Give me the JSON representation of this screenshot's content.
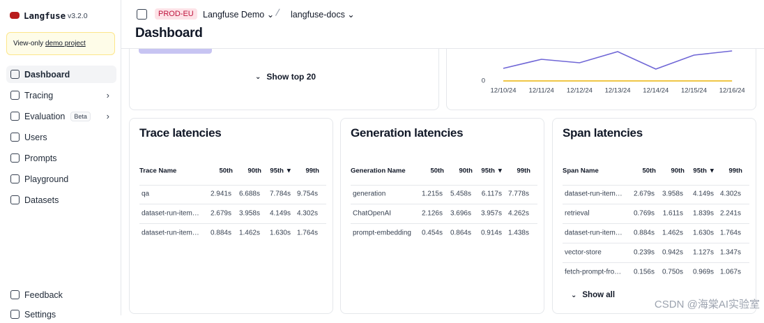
{
  "sidebar": {
    "logo": "Langfuse",
    "version": "v3.2.0",
    "notice": {
      "text": "View-only",
      "link": "demo project"
    },
    "nav": [
      "Dashboard",
      "Tracing",
      "Evaluation",
      "Users",
      "Prompts",
      "Playground",
      "Datasets"
    ],
    "beta": "Beta",
    "footer": [
      "Feedback",
      "Settings"
    ]
  },
  "header": {
    "env": "PROD-EU",
    "org": "Langfuse Demo",
    "project": "langfuse-docs",
    "title": "Dashboard"
  },
  "top_card": {
    "button": "Show top 20"
  },
  "chart": {
    "type": "line",
    "x": [
      "12/10/24",
      "12/11/24",
      "12/12/24",
      "12/13/24",
      "12/14/24",
      "12/15/24",
      "12/16/24"
    ],
    "ylim": [
      0,
      50
    ],
    "yticks": [
      0
    ],
    "series": [
      {
        "color": "#6f66d6",
        "values": [
          18,
          31,
          26,
          42,
          17,
          37,
          43
        ]
      },
      {
        "color": "#eab308",
        "values": [
          0,
          0,
          0,
          0,
          0,
          0,
          0
        ]
      }
    ]
  },
  "latency_tables": [
    {
      "title": "Trace latencies",
      "columns": [
        "Trace Name",
        "50th",
        "90th",
        "95th ▼",
        "99th"
      ],
      "rows": [
        [
          "qa",
          "2.941s",
          "6.688s",
          "7.784s",
          "9.754s"
        ],
        [
          "dataset-run-item…",
          "2.679s",
          "3.958s",
          "4.149s",
          "4.302s"
        ],
        [
          "dataset-run-item…",
          "0.884s",
          "1.462s",
          "1.630s",
          "1.764s"
        ]
      ]
    },
    {
      "title": "Generation latencies",
      "columns": [
        "Generation Name",
        "50th",
        "90th",
        "95th ▼",
        "99th"
      ],
      "rows": [
        [
          "generation",
          "1.215s",
          "5.458s",
          "6.117s",
          "7.778s"
        ],
        [
          "ChatOpenAI",
          "2.126s",
          "3.696s",
          "3.957s",
          "4.262s"
        ],
        [
          "prompt-embedding",
          "0.454s",
          "0.864s",
          "0.914s",
          "1.438s"
        ]
      ]
    },
    {
      "title": "Span latencies",
      "columns": [
        "Span Name",
        "50th",
        "90th",
        "95th ▼",
        "99th"
      ],
      "rows": [
        [
          "dataset-run-item…",
          "2.679s",
          "3.958s",
          "4.149s",
          "4.302s"
        ],
        [
          "retrieval",
          "0.769s",
          "1.611s",
          "1.839s",
          "2.241s"
        ],
        [
          "dataset-run-item…",
          "0.884s",
          "1.462s",
          "1.630s",
          "1.764s"
        ],
        [
          "vector-store",
          "0.239s",
          "0.942s",
          "1.127s",
          "1.347s"
        ],
        [
          "fetch-prompt-fro…",
          "0.156s",
          "0.750s",
          "0.969s",
          "1.067s"
        ]
      ],
      "button": "Show all"
    }
  ],
  "watermark": "CSDN @海棠AI实验室"
}
